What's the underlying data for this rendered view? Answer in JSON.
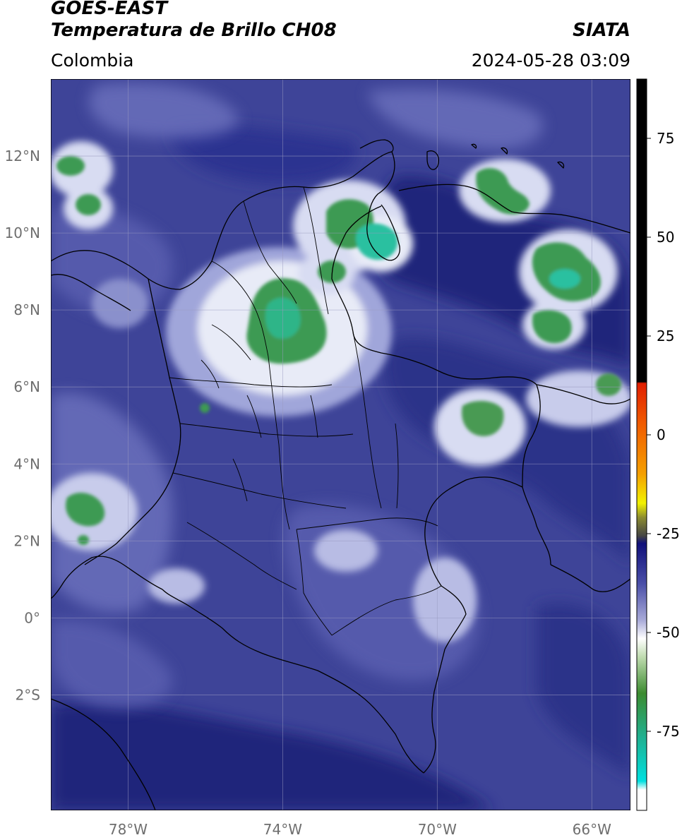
{
  "header": {
    "satellite": "GOES-EAST",
    "product": "Temperatura de Brillo CH08",
    "brand": "SIATA",
    "region": "Colombia",
    "timestamp": "2024-05-28 03:09"
  },
  "map_axes": {
    "lon_range": [
      -80,
      -65
    ],
    "lat_range": [
      -5,
      14
    ],
    "lon_ticks": [
      {
        "value": -78,
        "label": "78°W"
      },
      {
        "value": -74,
        "label": "74°W"
      },
      {
        "value": -70,
        "label": "70°W"
      },
      {
        "value": -66,
        "label": "66°W"
      }
    ],
    "lat_ticks": [
      {
        "value": 12,
        "label": "12°N"
      },
      {
        "value": 10,
        "label": "10°N"
      },
      {
        "value": 8,
        "label": "8°N"
      },
      {
        "value": 6,
        "label": "6°N"
      },
      {
        "value": 4,
        "label": "4°N"
      },
      {
        "value": 2,
        "label": "2°N"
      },
      {
        "value": 0,
        "label": "0°"
      },
      {
        "value": -2,
        "label": "2°S"
      }
    ],
    "grid": true
  },
  "colorbar": {
    "range": [
      -95,
      90
    ],
    "ticks": [
      {
        "value": 75,
        "label": "75"
      },
      {
        "value": 50,
        "label": "50"
      },
      {
        "value": 25,
        "label": "25"
      },
      {
        "value": 0,
        "label": "0"
      },
      {
        "value": -25,
        "label": "-25"
      },
      {
        "value": -50,
        "label": "-50"
      },
      {
        "value": -75,
        "label": "-75"
      }
    ],
    "colors": {
      "black": "#000000",
      "red": "#e01e00",
      "orange": "#f5a000",
      "yellow": "#f2f200",
      "olive": "#6e6e28",
      "dark_gray": "#444444",
      "navy": "#10107a",
      "blue": "#4a4fa8",
      "periwinkle": "#a8aad8",
      "white": "#ffffff",
      "light_green": "#c0dcb0",
      "green": "#3c8c30",
      "teal": "#20b090",
      "cyan": "#00e0e0"
    }
  },
  "map_colors": {
    "background": "#3e4498",
    "deep_cold_ocean": "#1e2478",
    "medium": "#5a5fb0",
    "light": "#9aa0d6",
    "white_halo": "#f2f4fa",
    "green": "#3e9a52",
    "teal": "#2ac0a0",
    "borders": "#000000"
  }
}
